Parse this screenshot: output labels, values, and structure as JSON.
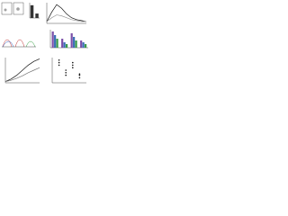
{
  "chart_data": [
    {
      "type": "bar",
      "categories": [
        null,
        null
      ],
      "series": [
        {
          "color": "#333333",
          "values": [
            1,
            0.35
          ]
        }
      ],
      "ylim": [
        0,
        1.2
      ]
    },
    {
      "type": "line",
      "x": [
        0,
        1,
        2,
        3,
        4,
        5,
        6,
        7,
        8
      ],
      "series": [
        {
          "color": "#111111",
          "values": [
            0.1,
            0.6,
            1,
            0.8,
            0.5,
            0.3,
            0.2,
            0.15,
            0.1
          ]
        },
        {
          "color": "#999999",
          "values": [
            0.1,
            0.3,
            0.45,
            0.4,
            0.3,
            0.2,
            0.15,
            0.1,
            0.1
          ]
        }
      ],
      "xlim": [
        0,
        8
      ],
      "ylim": [
        0,
        1.1
      ]
    },
    {
      "type": "bar",
      "categories": [
        null,
        null,
        null,
        null
      ],
      "series": [
        {
          "color": "#7b4fa8",
          "values": [
            0.9,
            0.5,
            0.8,
            0.4
          ]
        },
        {
          "color": "#3b6fb6",
          "values": [
            0.7,
            0.3,
            0.6,
            0.3
          ]
        },
        {
          "color": "#3a9a4a",
          "values": [
            0.5,
            0.2,
            0.4,
            0.2
          ]
        }
      ],
      "ylim": [
        0,
        1
      ]
    },
    {
      "type": "line",
      "x": [
        0,
        1,
        2,
        3,
        4,
        5,
        6
      ],
      "series": [
        {
          "color": "#111111",
          "values": [
            0.05,
            0.15,
            0.3,
            0.5,
            0.7,
            0.85,
            0.95
          ]
        },
        {
          "color": "#777777",
          "values": [
            0.05,
            0.1,
            0.18,
            0.28,
            0.4,
            0.5,
            0.6
          ]
        }
      ],
      "xlim": [
        0,
        6
      ],
      "ylim": [
        0,
        1
      ]
    },
    {
      "type": "scatter",
      "series": [
        {
          "color": "#111111",
          "x": [
            1,
            1,
            1,
            2,
            2,
            2,
            3,
            3,
            3,
            4,
            4,
            4
          ],
          "values": [
            0.8,
            0.7,
            0.9,
            0.4,
            0.5,
            0.3,
            0.7,
            0.6,
            0.8,
            0.3,
            0.2,
            0.35
          ]
        }
      ],
      "xlim": [
        0,
        5
      ],
      "ylim": [
        0,
        1
      ]
    }
  ]
}
